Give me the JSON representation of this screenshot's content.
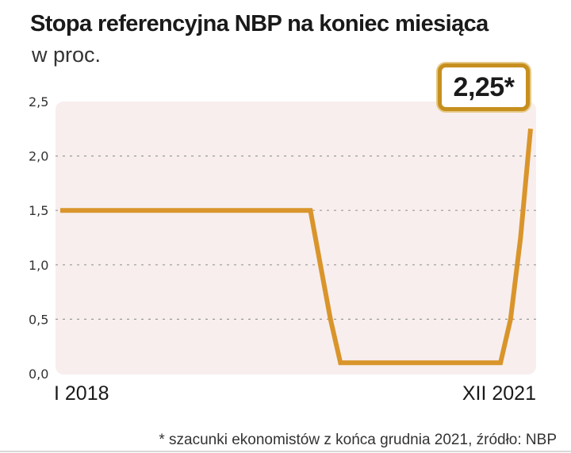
{
  "colors": {
    "line": "#d9952b",
    "plot_bg": "#f8eeee",
    "callout_border": "#c68f1e",
    "grid": "#9a9a9a"
  },
  "footnote": "* szacunki ekonomistów z końca grudnia 2021, źródło: NBP",
  "chart_data": {
    "type": "line",
    "title": "Stopa referencyjna NBP na koniec miesiąca",
    "subtitle": "w proc.",
    "ylim": [
      0,
      2.5
    ],
    "y_ticks": [
      0,
      0.5,
      1.0,
      1.5,
      2.0,
      2.5
    ],
    "y_tick_labels": [
      "0,0",
      "0,5",
      "1,0",
      "1,5",
      "2,0",
      "2,5"
    ],
    "x_tick_labels": [
      "I 2018",
      "XII 2021"
    ],
    "grid": "horizontal-dashed",
    "callout": "2,25*",
    "series": [
      {
        "x": [
          "2018-01",
          "2018-02",
          "2018-03",
          "2018-04",
          "2018-05",
          "2018-06",
          "2018-07",
          "2018-08",
          "2018-09",
          "2018-10",
          "2018-11",
          "2018-12",
          "2019-01",
          "2019-02",
          "2019-03",
          "2019-04",
          "2019-05",
          "2019-06",
          "2019-07",
          "2019-08",
          "2019-09",
          "2019-10",
          "2019-11",
          "2019-12",
          "2020-01",
          "2020-02",
          "2020-03",
          "2020-04",
          "2020-05",
          "2020-06",
          "2020-07",
          "2020-08",
          "2020-09",
          "2020-10",
          "2020-11",
          "2020-12",
          "2021-01",
          "2021-02",
          "2021-03",
          "2021-04",
          "2021-05",
          "2021-06",
          "2021-07",
          "2021-08",
          "2021-09",
          "2021-10",
          "2021-11",
          "2021-12"
        ],
        "values": [
          1.5,
          1.5,
          1.5,
          1.5,
          1.5,
          1.5,
          1.5,
          1.5,
          1.5,
          1.5,
          1.5,
          1.5,
          1.5,
          1.5,
          1.5,
          1.5,
          1.5,
          1.5,
          1.5,
          1.5,
          1.5,
          1.5,
          1.5,
          1.5,
          1.5,
          1.5,
          1.0,
          0.5,
          0.1,
          0.1,
          0.1,
          0.1,
          0.1,
          0.1,
          0.1,
          0.1,
          0.1,
          0.1,
          0.1,
          0.1,
          0.1,
          0.1,
          0.1,
          0.1,
          0.1,
          0.5,
          1.25,
          2.25
        ]
      }
    ]
  }
}
